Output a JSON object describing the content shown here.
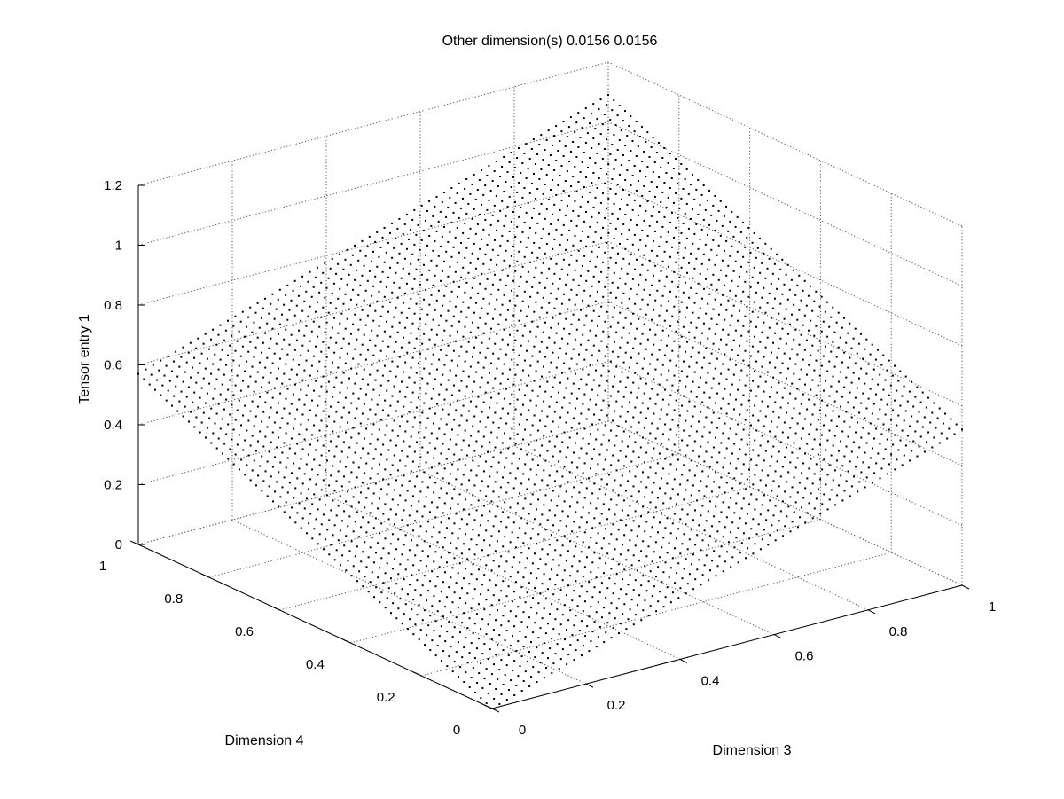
{
  "chart_data": {
    "type": "scatter3d",
    "title": "Other dimension(s) 0.0156 0.0156",
    "xlabel": "Dimension 3",
    "ylabel": "Dimension 4",
    "zlabel": "Tensor entry 1",
    "xlim": [
      0,
      1
    ],
    "ylim": [
      0,
      1
    ],
    "zlim": [
      0,
      1.2
    ],
    "xticks": [
      "0",
      "0.2",
      "0.4",
      "0.6",
      "0.8",
      "1"
    ],
    "yticks": [
      "0",
      "0.2",
      "0.4",
      "0.6",
      "0.8",
      "1"
    ],
    "zticks": [
      "0",
      "0.2",
      "0.4",
      "0.6",
      "0.8",
      "1",
      "1.2"
    ],
    "grid": true,
    "marker_color": "#000000",
    "surface": {
      "x_samples": 64,
      "y_samples": 64,
      "z_at_corners": {
        "x0_y0": 0.0,
        "x1_y0": 0.52,
        "x0_y1": 0.57,
        "x1_y1": 1.09
      }
    }
  }
}
